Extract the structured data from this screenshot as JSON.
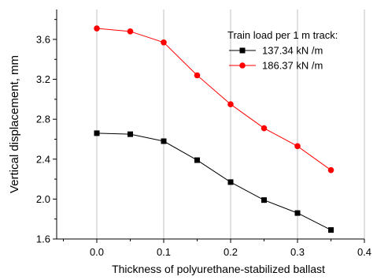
{
  "chart_data": {
    "type": "line",
    "title": "",
    "xlabel": "Thickness of polyurethane-stabilized ballast",
    "ylabel": "Vertical displacement, mm",
    "xlim": [
      -0.06,
      0.4
    ],
    "ylim": [
      1.6,
      3.9
    ],
    "x_ticks": [
      0.0,
      0.1,
      0.2,
      0.3,
      0.4
    ],
    "x_tick_labels": [
      "0.0",
      "0.1",
      "0.2",
      "0.3",
      "0.4"
    ],
    "y_ticks": [
      1.6,
      2.0,
      2.4,
      2.8,
      3.2,
      3.6
    ],
    "y_tick_labels": [
      "1.6",
      "2.0",
      "2.4",
      "2.8",
      "3.2",
      "3.6"
    ],
    "grid": "vertical",
    "legend_title": "Train load per 1 m track:",
    "legend_position": "top-right",
    "x": [
      0.0,
      0.05,
      0.1,
      0.15,
      0.2,
      0.25,
      0.3,
      0.35
    ],
    "series": [
      {
        "name": "137.34 kN /m",
        "color": "#000000",
        "marker": "square",
        "values": [
          2.66,
          2.65,
          2.58,
          2.39,
          2.17,
          1.99,
          1.86,
          1.69
        ]
      },
      {
        "name": "186.37  kN /m",
        "color": "#ff0000",
        "marker": "circle",
        "values": [
          3.71,
          3.68,
          3.57,
          3.24,
          2.95,
          2.71,
          2.53,
          2.29
        ]
      }
    ]
  }
}
